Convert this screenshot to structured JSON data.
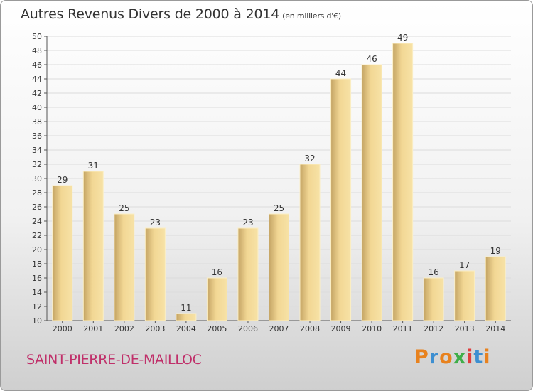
{
  "header": {
    "title": "Autres Revenus Divers de 2000 à 2014",
    "unit": "(en milliers d'€)"
  },
  "footer": {
    "commune": "SAINT-PIERRE-DE-MAILLOC",
    "logo": "Proxiti"
  },
  "colors": {
    "bar_light": "#f5dc98",
    "bar_dark": "#c4a464",
    "commune": "#c0306a",
    "logo": [
      "#e8821e",
      "#3d8fd1",
      "#e8821e",
      "#3fae49",
      "#e03c3c",
      "#3d8fd1",
      "#e8821e"
    ]
  },
  "chart_data": {
    "type": "bar",
    "title": "Autres Revenus Divers de 2000 à 2014",
    "subtitle": "(en milliers d'€)",
    "categories": [
      "2000",
      "2001",
      "2002",
      "2003",
      "2004",
      "2005",
      "2006",
      "2007",
      "2008",
      "2009",
      "2010",
      "2011",
      "2012",
      "2013",
      "2014"
    ],
    "values": [
      29,
      31,
      25,
      23,
      11,
      16,
      23,
      25,
      32,
      44,
      46,
      49,
      16,
      17,
      19
    ],
    "ylim": [
      10,
      50
    ],
    "yticks": [
      10,
      12,
      14,
      16,
      18,
      20,
      22,
      24,
      26,
      28,
      30,
      32,
      34,
      36,
      38,
      40,
      42,
      44,
      46,
      48,
      50
    ],
    "grid": true,
    "xlabel": "",
    "ylabel": ""
  }
}
